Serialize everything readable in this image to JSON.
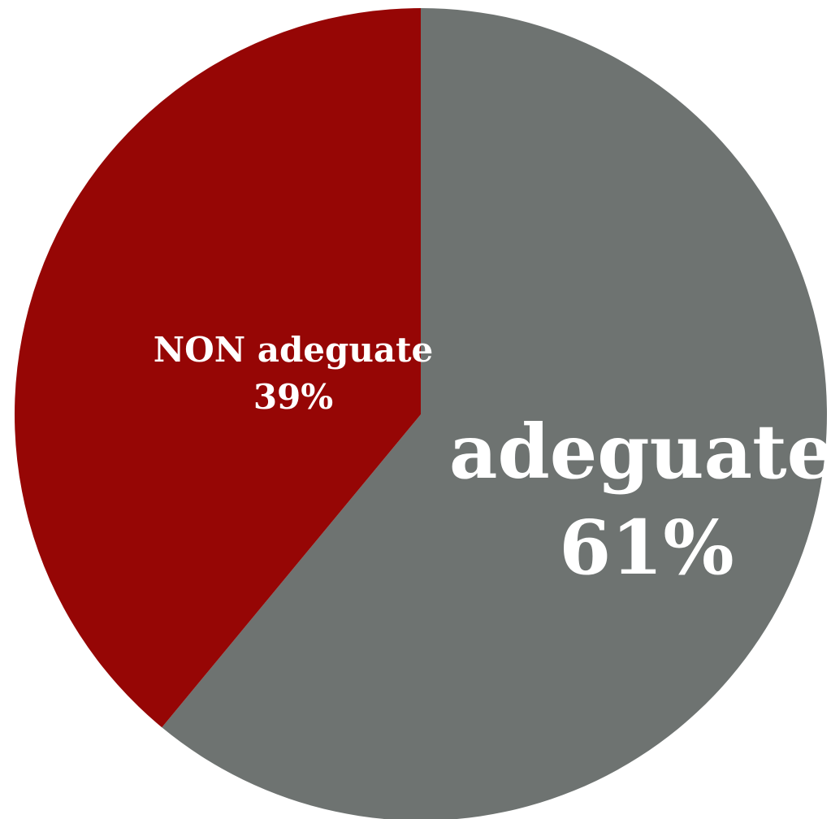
{
  "chart_data": {
    "type": "pie",
    "slices": [
      {
        "label": "adeguate",
        "value": 61,
        "value_label": "61%",
        "color": "#6e7371"
      },
      {
        "label": "NON adeguate",
        "value": 39,
        "value_label": "39%",
        "color": "#960605"
      }
    ],
    "start_angle_deg": 0,
    "direction": "clockwise",
    "legend": "none",
    "labels_inside": true
  }
}
